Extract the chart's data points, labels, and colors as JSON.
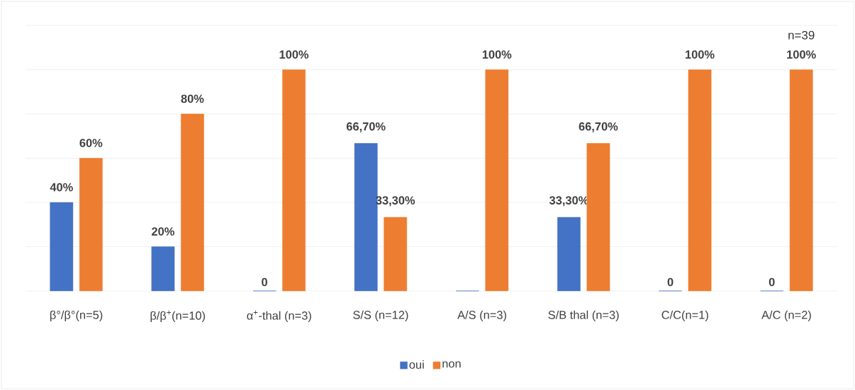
{
  "chart_data": {
    "type": "bar",
    "categories": [
      "β°/β°(n=5)",
      "β/β$^{+}$(n=10)",
      "α$^{+}$-thal (n=3)",
      "S/S (n=12)",
      "A/S (n=3)",
      "S/B thal (n=3)",
      "C/C(n=1)",
      "A/C (n=2)"
    ],
    "series": [
      {
        "name": "oui",
        "color": "#4472c4",
        "values": [
          40,
          20,
          0,
          66.7,
          0,
          33.3,
          0,
          0
        ],
        "value_labels": [
          "40%",
          "20%",
          "0",
          "66,70%",
          null,
          "33,30%",
          "0",
          "0"
        ]
      },
      {
        "name": "non",
        "color": "#ed7d31",
        "values": [
          60,
          80,
          100,
          33.3,
          100,
          66.7,
          100,
          100
        ],
        "value_labels": [
          "60%",
          "80%",
          "100%",
          "33,30%",
          "100%",
          "66,70%",
          "100%",
          "100%"
        ]
      }
    ],
    "ylim": [
      0,
      120
    ],
    "yticks": [
      {
        "value": 0,
        "label": null
      },
      {
        "value": 20,
        "label": null
      },
      {
        "value": 40,
        "label": null
      },
      {
        "value": 60,
        "label": null
      },
      {
        "value": 80,
        "label": null
      },
      {
        "value": 100,
        "label": null
      },
      {
        "value": 120,
        "label": null
      }
    ],
    "tick_labels": "x",
    "grid": "y",
    "legend": "bottom",
    "annotations": [
      "n=39"
    ]
  }
}
